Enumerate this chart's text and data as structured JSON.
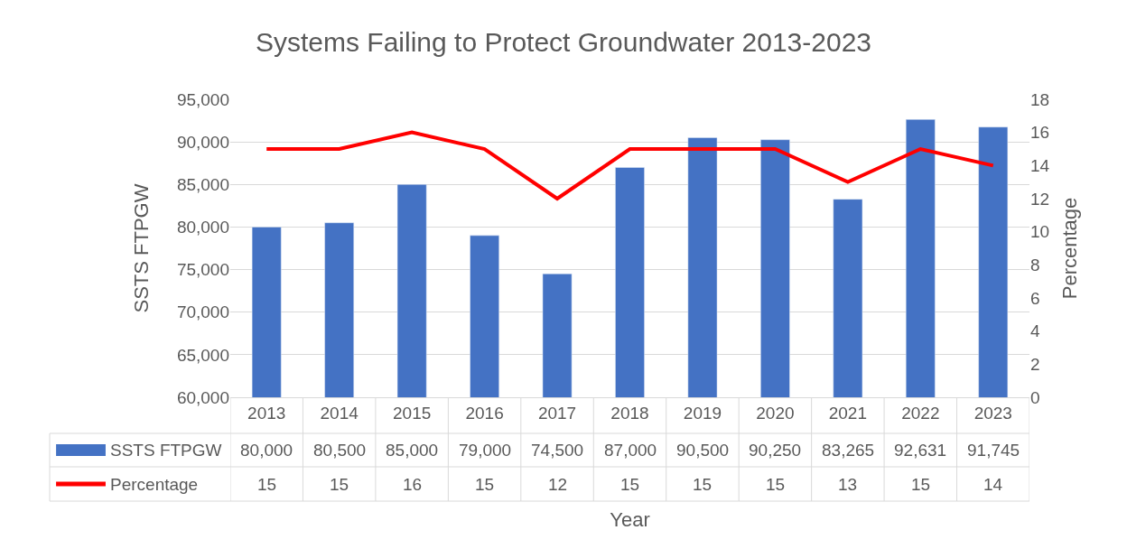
{
  "chart_data": {
    "type": "bar",
    "title": "Systems Failing to Protect Groundwater 2013-2023",
    "xlabel": "Year",
    "ylabel": "SSTS FTPGW",
    "y2label": "Percentage",
    "categories": [
      "2013",
      "2014",
      "2015",
      "2016",
      "2017",
      "2018",
      "2019",
      "2020",
      "2021",
      "2022",
      "2023"
    ],
    "series": [
      {
        "name": "SSTS FTPGW",
        "color": "#4472c4",
        "values": [
          80000,
          80500,
          85000,
          79000,
          74500,
          87000,
          90500,
          90250,
          83265,
          92631,
          91745
        ],
        "value_labels": [
          "80,000",
          "80,500",
          "85,000",
          "79,000",
          "74,500",
          "87,000",
          "90,500",
          "90,250",
          "83,265",
          "92,631",
          "91,745"
        ]
      },
      {
        "name": "Percentage",
        "type": "line",
        "axis": "y2",
        "color": "#ff0000",
        "values": [
          15,
          15,
          16,
          15,
          12,
          15,
          15,
          15,
          13,
          15,
          14
        ]
      }
    ],
    "ylim": [
      60000,
      95000
    ],
    "yticks": [
      {
        "value": 60000,
        "label": "60,000"
      },
      {
        "value": 65000,
        "label": "65,000"
      },
      {
        "value": 70000,
        "label": "70,000"
      },
      {
        "value": 75000,
        "label": "75,000"
      },
      {
        "value": 80000,
        "label": "80,000"
      },
      {
        "value": 85000,
        "label": "85,000"
      },
      {
        "value": 90000,
        "label": "90,000"
      },
      {
        "value": 95000,
        "label": "95,000"
      }
    ],
    "y2lim": [
      0,
      18
    ],
    "y2ticks": [
      0,
      2,
      4,
      6,
      8,
      10,
      12,
      14,
      16,
      18
    ],
    "grid": "y",
    "legend": "bottom",
    "data_labels": true,
    "marker": "none",
    "line_style": "solid"
  }
}
